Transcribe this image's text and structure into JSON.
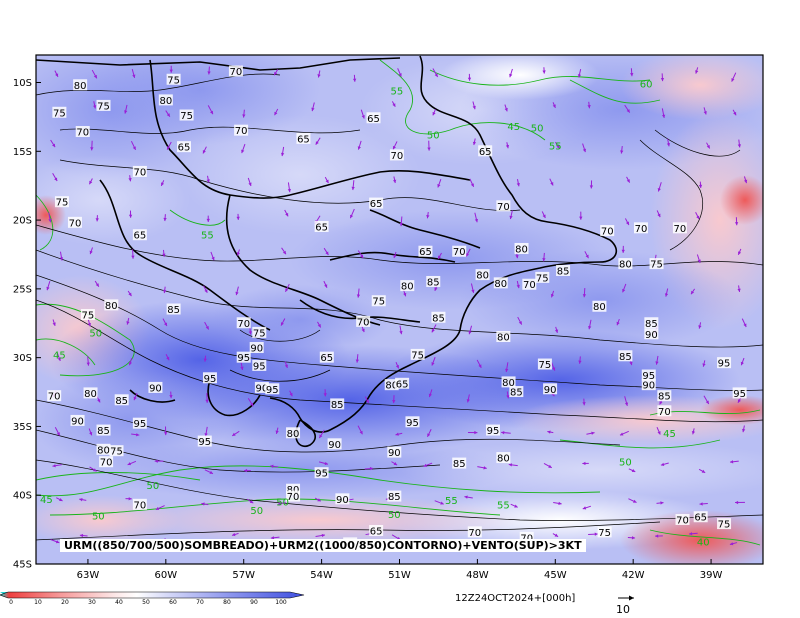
{
  "caption": "URM((850/700/500)SOMBREADO)+URM2((1000/850)CONTORNO)+VENTO(SUP)>3KT",
  "valid_time": "12Z24OCT2024+[000h]",
  "reference_vector_label": "10",
  "colors": {
    "blue_dark": "#4f5fe6",
    "blue_mid": "#8a95ee",
    "blue_light": "#c3c8f6",
    "pink_light": "#f8c9cf",
    "red": "#ee5a5a",
    "contour_black": "#000000",
    "contour_green": "#19b419",
    "wind_arrows": "#9a1fd6"
  },
  "chart_data": {
    "type": "heatmap",
    "title": "URM((850/700/500)SOMBREADO)+URM2((1000/850)CONTORNO)+VENTO(SUP)>3KT",
    "x_axis": {
      "ticks": [
        "63W",
        "60W",
        "57W",
        "54W",
        "51W",
        "48W",
        "45W",
        "42W",
        "39W"
      ],
      "range": [
        -65,
        -37
      ]
    },
    "y_axis": {
      "ticks": [
        "10S",
        "15S",
        "20S",
        "25S",
        "30S",
        "35S",
        "40S",
        "45S"
      ],
      "range": [
        -45,
        -8
      ]
    },
    "colorbar": {
      "ticks": [
        "0",
        "10",
        "20",
        "30",
        "40",
        "50",
        "60",
        "70",
        "80",
        "90",
        "100"
      ],
      "colors": [
        "#ee4040",
        "#f26c6c",
        "#f69a9a",
        "#fac5c5",
        "#ffffff",
        "#d6d9f8",
        "#b3b9f3",
        "#8f98ee",
        "#6f7ae9",
        "#4f5fe6"
      ]
    },
    "contour_labels": [
      {
        "lon": -63.3,
        "lat": -10.2,
        "value": "80"
      },
      {
        "lon": -59.7,
        "lat": -9.8,
        "value": "75"
      },
      {
        "lon": -57.3,
        "lat": -9.2,
        "value": "70"
      },
      {
        "lon": -62.4,
        "lat": -11.7,
        "value": "75"
      },
      {
        "lon": -60.0,
        "lat": -11.3,
        "value": "80"
      },
      {
        "lon": -64.1,
        "lat": -12.2,
        "value": "75"
      },
      {
        "lon": -63.2,
        "lat": -13.6,
        "value": "70"
      },
      {
        "lon": -59.2,
        "lat": -12.4,
        "value": "75"
      },
      {
        "lon": -59.3,
        "lat": -14.7,
        "value": "65"
      },
      {
        "lon": -57.1,
        "lat": -13.5,
        "value": "70"
      },
      {
        "lon": -54.7,
        "lat": -14.1,
        "value": "65"
      },
      {
        "lon": -52.0,
        "lat": -12.6,
        "value": "65"
      },
      {
        "lon": -51.1,
        "lat": -15.3,
        "value": "70"
      },
      {
        "lon": -47.7,
        "lat": -15.0,
        "value": "65"
      },
      {
        "lon": -61.0,
        "lat": -16.5,
        "value": "70"
      },
      {
        "lon": -64.0,
        "lat": -18.7,
        "value": "75"
      },
      {
        "lon": -63.5,
        "lat": -20.2,
        "value": "70"
      },
      {
        "lon": -61.0,
        "lat": -21.1,
        "value": "65"
      },
      {
        "lon": -54.0,
        "lat": -20.5,
        "value": "65"
      },
      {
        "lon": -51.9,
        "lat": -18.8,
        "value": "65"
      },
      {
        "lon": -47.0,
        "lat": -19.0,
        "value": "70"
      },
      {
        "lon": -43.0,
        "lat": -20.8,
        "value": "70"
      },
      {
        "lon": -41.7,
        "lat": -20.6,
        "value": "70"
      },
      {
        "lon": -40.2,
        "lat": -20.6,
        "value": "70"
      },
      {
        "lon": -50.0,
        "lat": -22.3,
        "value": "65"
      },
      {
        "lon": -48.7,
        "lat": -22.3,
        "value": "70"
      },
      {
        "lon": -46.3,
        "lat": -22.1,
        "value": "80"
      },
      {
        "lon": -47.8,
        "lat": -24.0,
        "value": "80"
      },
      {
        "lon": -47.1,
        "lat": -24.6,
        "value": "80"
      },
      {
        "lon": -46.0,
        "lat": -24.7,
        "value": "70"
      },
      {
        "lon": -45.5,
        "lat": -24.2,
        "value": "75"
      },
      {
        "lon": -44.7,
        "lat": -23.7,
        "value": "85"
      },
      {
        "lon": -42.3,
        "lat": -23.2,
        "value": "80"
      },
      {
        "lon": -41.1,
        "lat": -23.2,
        "value": "75"
      },
      {
        "lon": -49.7,
        "lat": -24.5,
        "value": "85"
      },
      {
        "lon": -50.7,
        "lat": -24.8,
        "value": "80"
      },
      {
        "lon": -51.8,
        "lat": -25.9,
        "value": "75"
      },
      {
        "lon": -52.4,
        "lat": -27.4,
        "value": "70"
      },
      {
        "lon": -49.5,
        "lat": -27.1,
        "value": "85"
      },
      {
        "lon": -47.0,
        "lat": -28.5,
        "value": "80"
      },
      {
        "lon": -43.3,
        "lat": -26.3,
        "value": "80"
      },
      {
        "lon": -41.3,
        "lat": -27.5,
        "value": "85"
      },
      {
        "lon": -41.3,
        "lat": -28.3,
        "value": "90"
      },
      {
        "lon": -63.0,
        "lat": -26.9,
        "value": "75"
      },
      {
        "lon": -62.1,
        "lat": -26.2,
        "value": "80"
      },
      {
        "lon": -59.7,
        "lat": -26.5,
        "value": "85"
      },
      {
        "lon": -57.0,
        "lat": -27.5,
        "value": "70"
      },
      {
        "lon": -56.4,
        "lat": -28.2,
        "value": "75"
      },
      {
        "lon": -56.5,
        "lat": -29.3,
        "value": "90"
      },
      {
        "lon": -57.0,
        "lat": -30.0,
        "value": "95"
      },
      {
        "lon": -56.4,
        "lat": -30.6,
        "value": "95"
      },
      {
        "lon": -53.8,
        "lat": -30.0,
        "value": "65"
      },
      {
        "lon": -50.3,
        "lat": -29.8,
        "value": "75"
      },
      {
        "lon": -45.4,
        "lat": -30.5,
        "value": "75"
      },
      {
        "lon": -42.3,
        "lat": -29.9,
        "value": "85"
      },
      {
        "lon": -41.4,
        "lat": -31.3,
        "value": "95"
      },
      {
        "lon": -41.4,
        "lat": -32.0,
        "value": "90"
      },
      {
        "lon": -40.8,
        "lat": -32.8,
        "value": "85"
      },
      {
        "lon": -40.8,
        "lat": -33.9,
        "value": "70"
      },
      {
        "lon": -38.5,
        "lat": -30.4,
        "value": "95"
      },
      {
        "lon": -37.9,
        "lat": -32.6,
        "value": "95"
      },
      {
        "lon": -64.3,
        "lat": -32.8,
        "value": "70"
      },
      {
        "lon": -62.9,
        "lat": -32.6,
        "value": "80"
      },
      {
        "lon": -61.7,
        "lat": -33.1,
        "value": "85"
      },
      {
        "lon": -60.4,
        "lat": -32.2,
        "value": "90"
      },
      {
        "lon": -58.3,
        "lat": -31.5,
        "value": "95"
      },
      {
        "lon": -56.3,
        "lat": -32.2,
        "value": "90"
      },
      {
        "lon": -55.9,
        "lat": -32.3,
        "value": "95"
      },
      {
        "lon": -51.3,
        "lat": -32.0,
        "value": "80"
      },
      {
        "lon": -50.9,
        "lat": -31.9,
        "value": "65"
      },
      {
        "lon": -46.8,
        "lat": -31.8,
        "value": "80"
      },
      {
        "lon": -46.5,
        "lat": -32.5,
        "value": "85"
      },
      {
        "lon": -45.2,
        "lat": -32.3,
        "value": "90"
      },
      {
        "lon": -53.4,
        "lat": -33.4,
        "value": "85"
      },
      {
        "lon": -50.5,
        "lat": -34.7,
        "value": "95"
      },
      {
        "lon": -47.4,
        "lat": -35.3,
        "value": "95"
      },
      {
        "lon": -63.4,
        "lat": -34.6,
        "value": "90"
      },
      {
        "lon": -62.4,
        "lat": -35.3,
        "value": "85"
      },
      {
        "lon": -61.0,
        "lat": -34.8,
        "value": "95"
      },
      {
        "lon": -62.4,
        "lat": -36.7,
        "value": "80"
      },
      {
        "lon": -61.9,
        "lat": -36.8,
        "value": "75"
      },
      {
        "lon": -58.5,
        "lat": -36.1,
        "value": "95"
      },
      {
        "lon": -55.1,
        "lat": -35.5,
        "value": "80"
      },
      {
        "lon": -53.5,
        "lat": -36.3,
        "value": "90"
      },
      {
        "lon": -51.2,
        "lat": -36.9,
        "value": "90"
      },
      {
        "lon": -48.7,
        "lat": -37.7,
        "value": "85"
      },
      {
        "lon": -47.0,
        "lat": -37.3,
        "value": "80"
      },
      {
        "lon": -62.3,
        "lat": -37.6,
        "value": "70"
      },
      {
        "lon": -54.0,
        "lat": -38.4,
        "value": "95"
      },
      {
        "lon": -55.1,
        "lat": -39.6,
        "value": "80"
      },
      {
        "lon": -55.1,
        "lat": -40.1,
        "value": "70"
      },
      {
        "lon": -53.2,
        "lat": -40.3,
        "value": "90"
      },
      {
        "lon": -51.2,
        "lat": -40.1,
        "value": "85"
      },
      {
        "lon": -61.0,
        "lat": -40.7,
        "value": "70"
      },
      {
        "lon": -52.9,
        "lat": -43.5,
        "value": "65"
      },
      {
        "lon": -51.9,
        "lat": -42.6,
        "value": "65"
      },
      {
        "lon": -48.1,
        "lat": -42.7,
        "value": "70"
      },
      {
        "lon": -46.1,
        "lat": -43.1,
        "value": "70"
      },
      {
        "lon": -43.1,
        "lat": -42.7,
        "value": "75"
      },
      {
        "lon": -40.1,
        "lat": -41.8,
        "value": "70"
      },
      {
        "lon": -39.4,
        "lat": -41.6,
        "value": "65"
      },
      {
        "lon": -38.5,
        "lat": -42.1,
        "value": "75"
      }
    ],
    "green_contour_labels": [
      {
        "lon": -51.1,
        "lat": -10.6,
        "value": "55"
      },
      {
        "lon": -49.7,
        "lat": -13.8,
        "value": "50"
      },
      {
        "lon": -46.6,
        "lat": -13.2,
        "value": "45"
      },
      {
        "lon": -45.7,
        "lat": -13.3,
        "value": "50"
      },
      {
        "lon": -45.0,
        "lat": -14.6,
        "value": "55"
      },
      {
        "lon": -41.5,
        "lat": -10.1,
        "value": "60"
      },
      {
        "lon": -58.4,
        "lat": -21.1,
        "value": "55"
      },
      {
        "lon": -64.1,
        "lat": -29.8,
        "value": "45"
      },
      {
        "lon": -62.7,
        "lat": -28.2,
        "value": "50"
      },
      {
        "lon": -40.6,
        "lat": -35.5,
        "value": "45"
      },
      {
        "lon": -42.3,
        "lat": -37.6,
        "value": "50"
      },
      {
        "lon": -60.5,
        "lat": -39.3,
        "value": "50"
      },
      {
        "lon": -56.5,
        "lat": -41.1,
        "value": "50"
      },
      {
        "lon": -55.5,
        "lat": -40.5,
        "value": "50"
      },
      {
        "lon": -49.0,
        "lat": -40.4,
        "value": "55"
      },
      {
        "lon": -47.0,
        "lat": -40.7,
        "value": "55"
      },
      {
        "lon": -51.2,
        "lat": -41.4,
        "value": "50"
      },
      {
        "lon": -64.6,
        "lat": -40.3,
        "value": "45"
      },
      {
        "lon": -62.6,
        "lat": -41.5,
        "value": "50"
      },
      {
        "lon": -39.3,
        "lat": -43.4,
        "value": "40"
      }
    ]
  }
}
